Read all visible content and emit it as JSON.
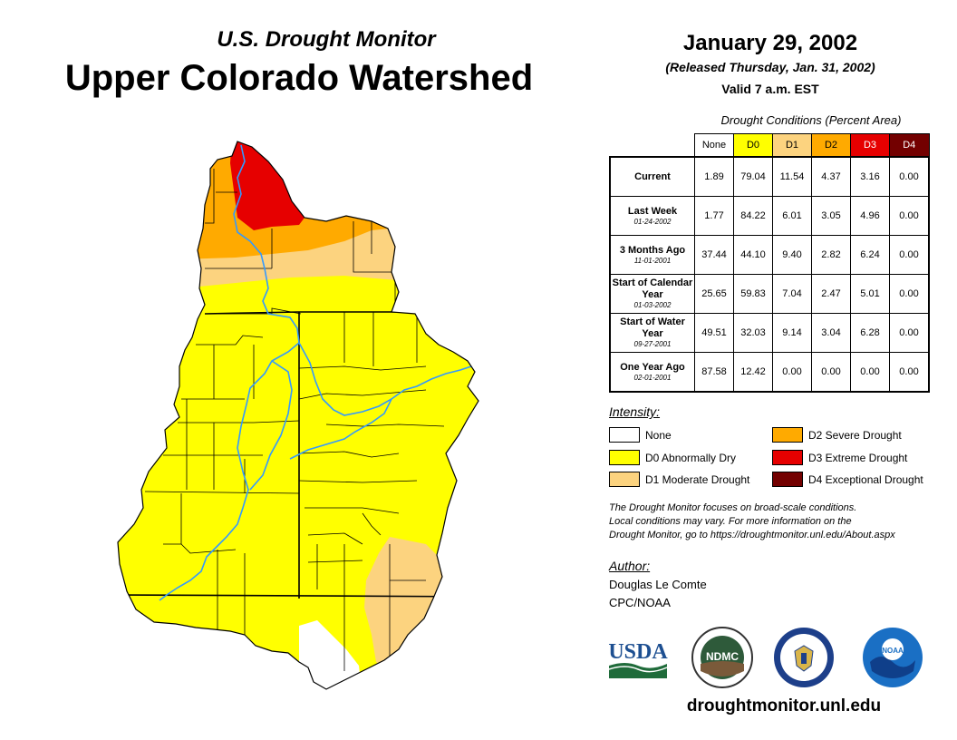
{
  "header": {
    "subtitle": "U.S. Drought Monitor",
    "title": "Upper Colorado Watershed",
    "date": "January 29, 2002",
    "released": "(Released Thursday, Jan. 31, 2002)",
    "valid": "Valid 7 a.m. EST"
  },
  "table": {
    "caption": "Drought Conditions (Percent Area)",
    "columns": [
      "None",
      "D0",
      "D1",
      "D2",
      "D3",
      "D4"
    ],
    "rows": [
      {
        "label": "Current",
        "date": "",
        "values": [
          "1.89",
          "79.04",
          "11.54",
          "4.37",
          "3.16",
          "0.00"
        ]
      },
      {
        "label": "Last Week",
        "date": "01-24-2002",
        "values": [
          "1.77",
          "84.22",
          "6.01",
          "3.05",
          "4.96",
          "0.00"
        ]
      },
      {
        "label": "3 Months Ago",
        "date": "11-01-2001",
        "values": [
          "37.44",
          "44.10",
          "9.40",
          "2.82",
          "6.24",
          "0.00"
        ]
      },
      {
        "label": "Start of Calendar Year",
        "date": "01-03-2002",
        "values": [
          "25.65",
          "59.83",
          "7.04",
          "2.47",
          "5.01",
          "0.00"
        ]
      },
      {
        "label": "Start of Water Year",
        "date": "09-27-2001",
        "values": [
          "49.51",
          "32.03",
          "9.14",
          "3.04",
          "6.28",
          "0.00"
        ]
      },
      {
        "label": "One Year Ago",
        "date": "02-01-2001",
        "values": [
          "87.58",
          "12.42",
          "0.00",
          "0.00",
          "0.00",
          "0.00"
        ]
      }
    ]
  },
  "legend": {
    "title": "Intensity:",
    "items": [
      {
        "label": "None",
        "color": "#ffffff"
      },
      {
        "label": "D0 Abnormally Dry",
        "color": "#ffff00"
      },
      {
        "label": "D1 Moderate Drought",
        "color": "#fcd37f"
      },
      {
        "label": "D2 Severe Drought",
        "color": "#ffaa00"
      },
      {
        "label": "D3 Extreme Drought",
        "color": "#e60000"
      },
      {
        "label": "D4 Exceptional Drought",
        "color": "#730000"
      }
    ]
  },
  "note": {
    "line1": "The Drought Monitor focuses on broad-scale conditions.",
    "line2": "Local conditions may vary. For more information on the",
    "line3": "Drought Monitor, go to https://droughtmonitor.unl.edu/About.aspx"
  },
  "author": {
    "title": "Author:",
    "name": "Douglas Le Comte",
    "org": "CPC/NOAA"
  },
  "logos": {
    "usda": "USDA",
    "ndmc": "NDMC",
    "noaa": "NOAA"
  },
  "website": "droughtmonitor.unl.edu",
  "colors": {
    "none": "#ffffff",
    "d0": "#ffff00",
    "d1": "#fcd37f",
    "d2": "#ffaa00",
    "d3": "#e60000",
    "d4": "#730000",
    "river": "#3399ff"
  }
}
